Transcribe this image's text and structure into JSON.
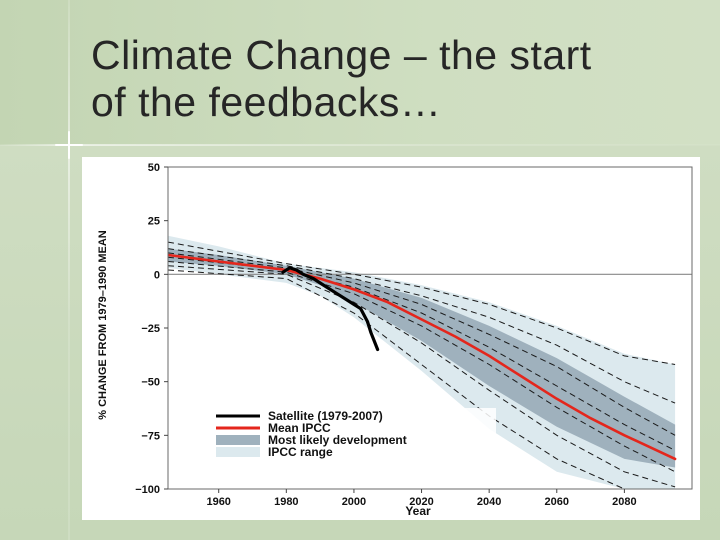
{
  "slide": {
    "title_line1": "Climate Change – the start",
    "title_line2": "of the feedbacks…"
  },
  "colors": {
    "range": "#dce9ee",
    "likely": "#9fb1bd",
    "mean": "#e4261c",
    "satellite": "#000000",
    "zero_line": "#888888"
  },
  "chart_data": {
    "type": "line",
    "title": "",
    "xlabel": "Year",
    "ylabel": "% CHANGE FROM 1979–1990 MEAN",
    "xlim": [
      1945,
      2100
    ],
    "ylim": [
      -100,
      50
    ],
    "xticks": [
      1960,
      1980,
      2000,
      2020,
      2040,
      2060,
      2080
    ],
    "yticks": [
      50,
      25,
      0,
      -25,
      -50,
      -75,
      -100
    ],
    "ytick_labels": [
      "50",
      "25",
      "0",
      "−25",
      "−50",
      "−75",
      "−100"
    ],
    "zero_line": true,
    "legend_position": "bottom-left",
    "legend": [
      {
        "label": "Satellite (1979-2007)",
        "kind": "line",
        "color": "#000000"
      },
      {
        "label": "Mean IPCC",
        "kind": "line",
        "color": "#e4261c"
      },
      {
        "label": "Most likely development",
        "kind": "box",
        "color": "#9fb1bd"
      },
      {
        "label": "IPCC range",
        "kind": "box",
        "color": "#dce9ee"
      }
    ],
    "ipcc_range": {
      "x": [
        1945,
        1960,
        1980,
        1990,
        2000,
        2020,
        2040,
        2060,
        2080,
        2095
      ],
      "upper": [
        18,
        13,
        5,
        3,
        1,
        -5,
        -13,
        -24,
        -37,
        -42
      ],
      "lower": [
        3,
        0,
        -4,
        -10,
        -20,
        -45,
        -72,
        -92,
        -100,
        -100
      ]
    },
    "most_likely": {
      "x": [
        1945,
        1960,
        1980,
        1990,
        2000,
        2020,
        2040,
        2060,
        2080,
        2095
      ],
      "upper": [
        12,
        9,
        4,
        1,
        -2,
        -11,
        -24,
        -39,
        -57,
        -70
      ],
      "lower": [
        6,
        4,
        0,
        -5,
        -13,
        -31,
        -52,
        -71,
        -86,
        -90
      ]
    },
    "series": [
      {
        "name": "Mean IPCC",
        "color": "#e4261c",
        "x": [
          1945,
          1960,
          1980,
          1990,
          2000,
          2010,
          2020,
          2030,
          2040,
          2050,
          2060,
          2070,
          2080,
          2095
        ],
        "values": [
          9,
          6,
          2,
          -2,
          -7,
          -13,
          -21,
          -29,
          -38,
          -48,
          -58,
          -67,
          -75,
          -86
        ]
      },
      {
        "name": "Satellite (1979-2007)",
        "color": "#000000",
        "x": [
          1979,
          1981,
          1983,
          1985,
          1988,
          1991,
          1995,
          1998,
          2000,
          2002,
          2004,
          2005,
          2006,
          2007
        ],
        "values": [
          1,
          3,
          2,
          0,
          -2,
          -5,
          -9,
          -12,
          -14,
          -16,
          -22,
          -27,
          -31,
          -35
        ]
      }
    ],
    "model_runs": [
      {
        "x": [
          1945,
          1980,
          2000,
          2020,
          2040,
          2060,
          2080,
          2095
        ],
        "values": [
          15,
          5,
          0,
          -6,
          -14,
          -25,
          -38,
          -42
        ]
      },
      {
        "x": [
          1945,
          1980,
          2000,
          2020,
          2040,
          2060,
          2080,
          2095
        ],
        "values": [
          12,
          4,
          -2,
          -10,
          -20,
          -33,
          -50,
          -60
        ]
      },
      {
        "x": [
          1945,
          1980,
          2000,
          2020,
          2040,
          2060,
          2080,
          2095
        ],
        "values": [
          10,
          3,
          -4,
          -14,
          -28,
          -43,
          -62,
          -75
        ]
      },
      {
        "x": [
          1945,
          1980,
          2000,
          2020,
          2040,
          2060,
          2080,
          2095
        ],
        "values": [
          8,
          2,
          -6,
          -18,
          -34,
          -52,
          -70,
          -82
        ]
      },
      {
        "x": [
          1945,
          1980,
          2000,
          2020,
          2040,
          2060,
          2080,
          2095
        ],
        "values": [
          6,
          1,
          -9,
          -24,
          -42,
          -62,
          -80,
          -92
        ]
      },
      {
        "x": [
          1945,
          1980,
          2000,
          2020,
          2040,
          2060,
          2080,
          2095
        ],
        "values": [
          4,
          0,
          -13,
          -32,
          -54,
          -75,
          -92,
          -99
        ]
      },
      {
        "x": [
          1945,
          1980,
          2000,
          2020,
          2040,
          2060,
          2080,
          2095
        ],
        "values": [
          2,
          -2,
          -18,
          -42,
          -66,
          -86,
          -100,
          -100
        ]
      }
    ]
  }
}
